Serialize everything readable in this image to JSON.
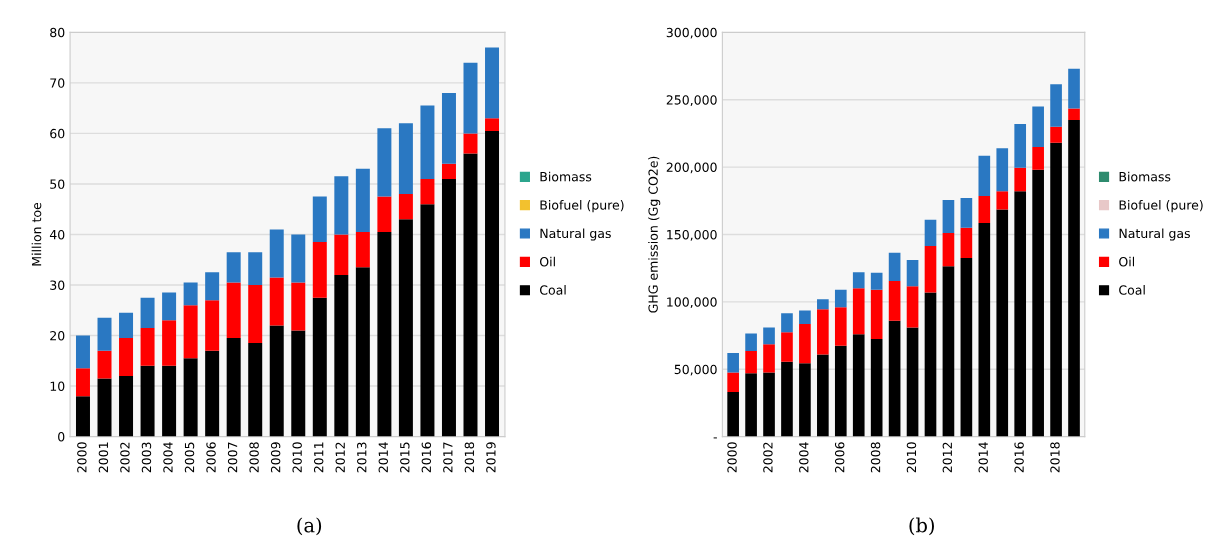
{
  "chart_data": [
    {
      "type": "bar",
      "stacked": true,
      "ylabel": "Million toe",
      "categories": [
        "2000",
        "2001",
        "2002",
        "2003",
        "2004",
        "2005",
        "2006",
        "2007",
        "2008",
        "2009",
        "2010",
        "2011",
        "2012",
        "2013",
        "2014",
        "2015",
        "2016",
        "2017",
        "2018",
        "2019"
      ],
      "ylim": [
        0,
        80
      ],
      "yticks": [
        0,
        10,
        20,
        30,
        40,
        50,
        60,
        70,
        80
      ],
      "grid": "y",
      "legend": "right",
      "series": [
        {
          "name": "Coal",
          "color": "#000000",
          "values": [
            8,
            11.5,
            12,
            14,
            14,
            15.5,
            17,
            19.5,
            18.5,
            22,
            21,
            27.5,
            32,
            33.5,
            40.5,
            43,
            46,
            51,
            56,
            60.5
          ]
        },
        {
          "name": "Oil",
          "color": "#ff0000",
          "values": [
            5.5,
            5.5,
            7.5,
            7.5,
            9,
            10.5,
            10,
            11,
            11.5,
            9.5,
            9.5,
            11,
            8,
            7,
            7,
            5,
            5,
            3,
            4,
            2.5
          ]
        },
        {
          "name": "Natural gas",
          "color": "#2a78c2",
          "values": [
            6.5,
            6.5,
            5,
            6,
            5.5,
            4.5,
            5.5,
            6,
            6.5,
            9.5,
            9.5,
            9,
            11.5,
            12.5,
            13.5,
            14,
            14.5,
            14,
            14,
            14
          ]
        },
        {
          "name": "Biofuel (pure)",
          "color": "#f2c12e",
          "values": [
            null,
            null,
            null,
            null,
            null,
            null,
            null,
            null,
            null,
            null,
            null,
            null,
            null,
            null,
            null,
            null,
            null,
            null,
            null,
            null
          ]
        },
        {
          "name": "Biomass",
          "color": "#2ca58d",
          "values": [
            null,
            null,
            null,
            null,
            null,
            null,
            null,
            null,
            null,
            null,
            null,
            null,
            null,
            null,
            null,
            null,
            null,
            null,
            null,
            null
          ]
        }
      ],
      "annotations": [
        "(a)"
      ]
    },
    {
      "type": "bar",
      "stacked": true,
      "ylabel": "GHG emission (Gg CO2e)",
      "categories": [
        "2000",
        null,
        "2002",
        null,
        "2004",
        null,
        "2006",
        null,
        "2008",
        null,
        "2010",
        null,
        "2012",
        null,
        "2014",
        null,
        "2016",
        null,
        "2018",
        null
      ],
      "ylim": [
        0,
        300000
      ],
      "yticks": [
        {
          "value": 0,
          "label": "-"
        },
        {
          "value": 50000,
          "label": "50,000"
        },
        {
          "value": 100000,
          "label": "100,000"
        },
        {
          "value": 150000,
          "label": "150,000"
        },
        {
          "value": 200000,
          "label": "200,000"
        },
        {
          "value": 250000,
          "label": "250,000"
        },
        {
          "value": 300000,
          "label": "300,000"
        }
      ],
      "grid": "y",
      "legend": "right",
      "series": [
        {
          "name": "Coal",
          "color": "#000000",
          "values": [
            33000,
            47000,
            47500,
            55500,
            54500,
            61000,
            67500,
            76000,
            72500,
            86000,
            81000,
            107000,
            126500,
            132500,
            158500,
            168500,
            182000,
            198000,
            218000,
            235000
          ]
        },
        {
          "name": "Oil",
          "color": "#ff0000",
          "values": [
            14500,
            16500,
            21000,
            22000,
            29000,
            33500,
            28500,
            34000,
            36500,
            29500,
            30500,
            34500,
            24500,
            22500,
            20000,
            13500,
            17500,
            17000,
            12000,
            8500
          ]
        },
        {
          "name": "Natural gas",
          "color": "#2a78c2",
          "values": [
            14500,
            13000,
            12500,
            14000,
            10000,
            7500,
            13000,
            12000,
            12500,
            21000,
            19500,
            19500,
            24500,
            22000,
            30000,
            32000,
            32500,
            30000,
            31500,
            29500
          ]
        },
        {
          "name": "Biofuel (pure)",
          "color": "#e8c8c8",
          "values": [
            null,
            null,
            null,
            null,
            null,
            null,
            null,
            null,
            null,
            null,
            null,
            null,
            null,
            null,
            null,
            null,
            null,
            null,
            null,
            null
          ]
        },
        {
          "name": "Biomass",
          "color": "#2e8b6e",
          "values": [
            null,
            null,
            null,
            null,
            null,
            null,
            null,
            null,
            null,
            null,
            null,
            null,
            null,
            null,
            null,
            null,
            null,
            null,
            null,
            null
          ]
        }
      ],
      "annotations": [
        "(b)"
      ]
    }
  ]
}
